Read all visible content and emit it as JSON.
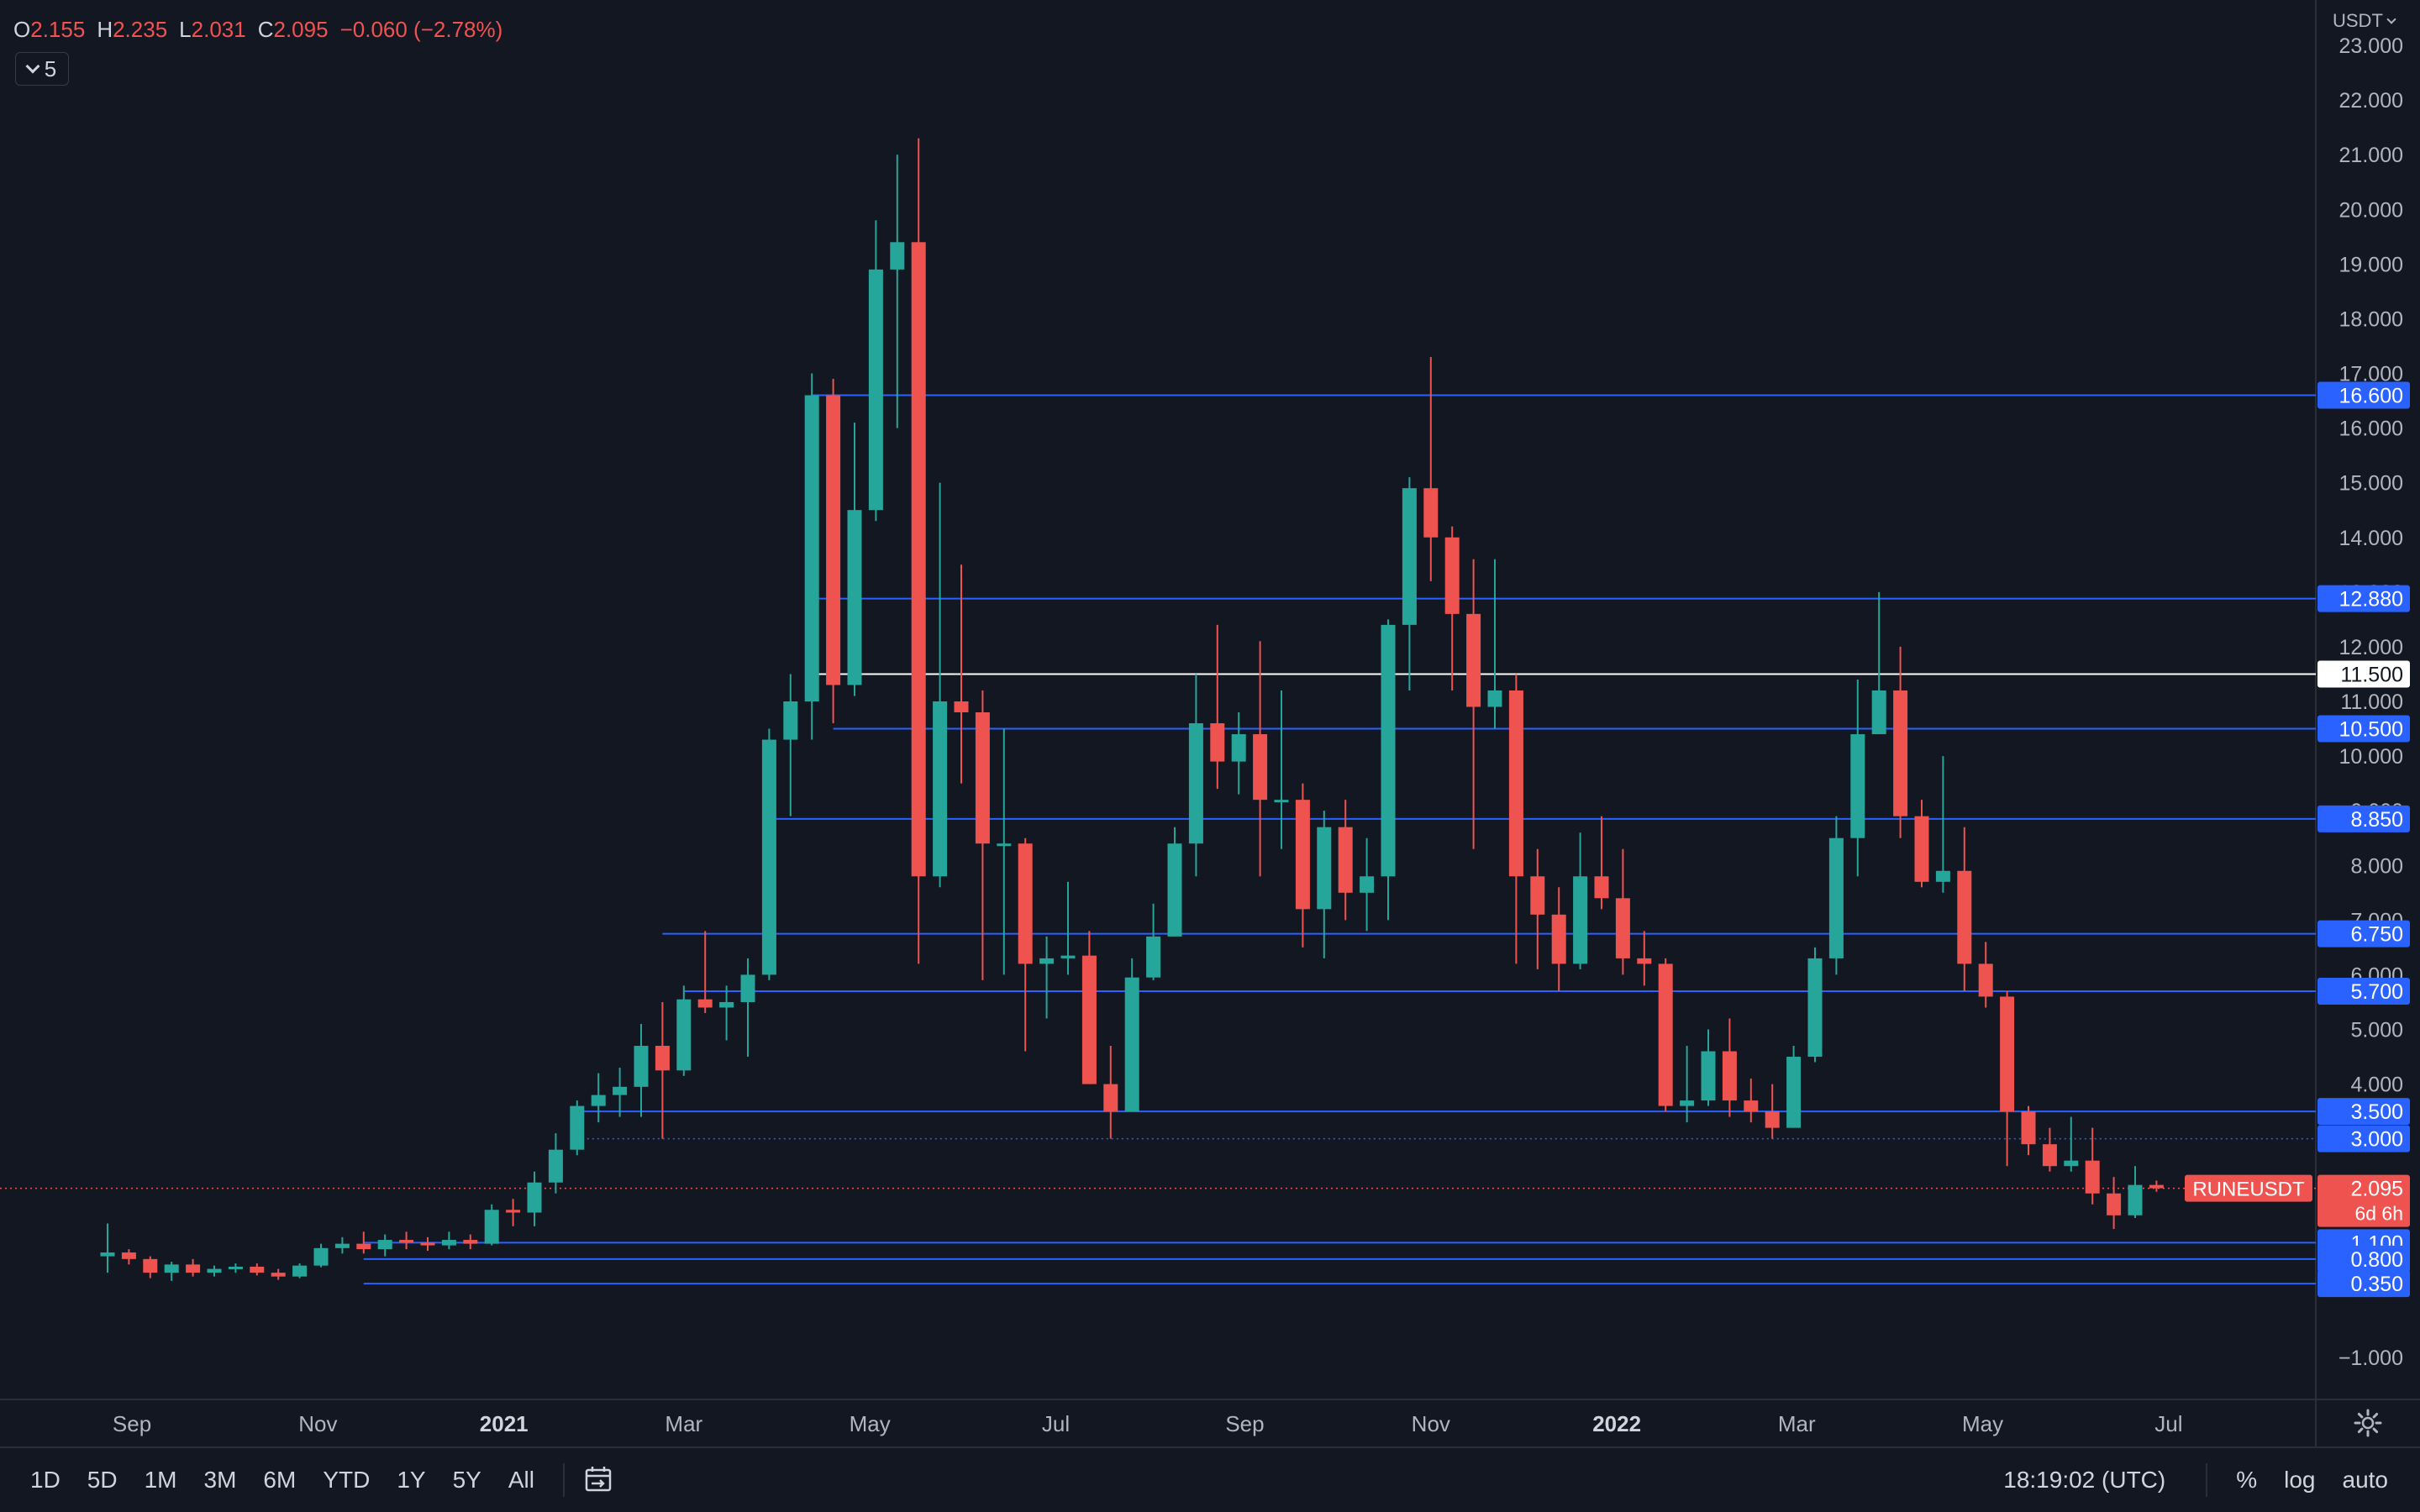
{
  "header": {
    "o_label": "O",
    "o_value": "2.155",
    "h_label": "H",
    "h_value": "2.235",
    "l_label": "L",
    "l_value": "2.031",
    "c_label": "C",
    "c_value": "2.095",
    "change": "−0.060 (−2.78%)",
    "indicator_count": "5",
    "currency": "USDT"
  },
  "colors": {
    "background": "#131722",
    "up": "#26a69a",
    "down": "#ef5350",
    "hline": "#2962ff",
    "white_line": "#ffffff",
    "axis_text": "#b2b5be"
  },
  "chart_data": {
    "type": "candlestick",
    "symbol": "RUNEUSDT",
    "interval": "1W",
    "current_price": "2.095",
    "countdown": "6d 6h",
    "ylim": [
      -1.4,
      23.2
    ],
    "y_ticks": [
      "23.000",
      "22.000",
      "21.000",
      "20.000",
      "19.000",
      "18.000",
      "17.000",
      "16.000",
      "15.000",
      "14.000",
      "13.000",
      "12.000",
      "11.000",
      "10.000",
      "9.000",
      "8.000",
      "7.000",
      "6.000",
      "5.000",
      "4.000",
      "3.000",
      "2.000",
      "1.000",
      "−1.000"
    ],
    "x_ticks": [
      {
        "label": "Sep",
        "date": "2020-09-01",
        "bold": false
      },
      {
        "label": "Nov",
        "date": "2020-11-01",
        "bold": false
      },
      {
        "label": "2021",
        "date": "2021-01-01",
        "bold": true
      },
      {
        "label": "Mar",
        "date": "2021-03-01",
        "bold": false
      },
      {
        "label": "May",
        "date": "2021-05-01",
        "bold": false
      },
      {
        "label": "Jul",
        "date": "2021-07-01",
        "bold": false
      },
      {
        "label": "Sep",
        "date": "2021-09-01",
        "bold": false
      },
      {
        "label": "Nov",
        "date": "2021-11-01",
        "bold": false
      },
      {
        "label": "2022",
        "date": "2022-01-01",
        "bold": true
      },
      {
        "label": "Mar",
        "date": "2022-03-01",
        "bold": false
      },
      {
        "label": "May",
        "date": "2022-05-01",
        "bold": false
      },
      {
        "label": "Jul",
        "date": "2022-07-01",
        "bold": false
      }
    ],
    "horizontal_levels": [
      {
        "price": 16.6,
        "label": "16.600",
        "color": "#2962ff",
        "start_date": "2021-04-12"
      },
      {
        "price": 12.88,
        "label": "12.880",
        "color": "#2962ff",
        "start_date": "2021-04-12"
      },
      {
        "price": 11.5,
        "label": "11.500",
        "color": "#ffffff",
        "start_date": "2021-04-12"
      },
      {
        "price": 10.5,
        "label": "10.500",
        "color": "#2962ff",
        "start_date": "2021-04-19"
      },
      {
        "price": 8.85,
        "label": "8.850",
        "color": "#2962ff",
        "start_date": "2021-03-29"
      },
      {
        "price": 6.75,
        "label": "6.750",
        "color": "#2962ff",
        "start_date": "2021-02-22"
      },
      {
        "price": 5.7,
        "label": "5.700",
        "color": "#2962ff",
        "start_date": "2021-03-01"
      },
      {
        "price": 3.5,
        "label": "3.500",
        "color": "#2962ff",
        "start_date": "2021-01-25"
      },
      {
        "price": 3.0,
        "label": "3.000",
        "color": "#2962ff",
        "start_date": "2021-01-25",
        "dotted": true
      },
      {
        "price": 1.1,
        "label": "1.100",
        "color": "#2962ff",
        "start_date": "2020-11-16"
      },
      {
        "price": 0.8,
        "label": "0.800",
        "color": "#2962ff",
        "start_date": "2020-11-16"
      },
      {
        "price": 0.35,
        "label": "0.350",
        "color": "#2962ff",
        "start_date": "2020-11-16"
      }
    ],
    "candles": [
      {
        "date": "2020-08-24",
        "o": 0.85,
        "h": 1.45,
        "l": 0.55,
        "c": 0.92
      },
      {
        "date": "2020-08-31",
        "o": 0.92,
        "h": 0.98,
        "l": 0.7,
        "c": 0.8
      },
      {
        "date": "2020-09-07",
        "o": 0.8,
        "h": 0.85,
        "l": 0.45,
        "c": 0.55
      },
      {
        "date": "2020-09-14",
        "o": 0.55,
        "h": 0.75,
        "l": 0.4,
        "c": 0.7
      },
      {
        "date": "2020-09-21",
        "o": 0.7,
        "h": 0.8,
        "l": 0.48,
        "c": 0.55
      },
      {
        "date": "2020-09-28",
        "o": 0.55,
        "h": 0.68,
        "l": 0.48,
        "c": 0.62
      },
      {
        "date": "2020-10-05",
        "o": 0.62,
        "h": 0.72,
        "l": 0.55,
        "c": 0.66
      },
      {
        "date": "2020-10-12",
        "o": 0.66,
        "h": 0.72,
        "l": 0.5,
        "c": 0.55
      },
      {
        "date": "2020-10-19",
        "o": 0.55,
        "h": 0.62,
        "l": 0.42,
        "c": 0.48
      },
      {
        "date": "2020-10-26",
        "o": 0.48,
        "h": 0.72,
        "l": 0.45,
        "c": 0.68
      },
      {
        "date": "2020-11-02",
        "o": 0.68,
        "h": 1.08,
        "l": 0.65,
        "c": 1.0
      },
      {
        "date": "2020-11-09",
        "o": 1.0,
        "h": 1.2,
        "l": 0.9,
        "c": 1.08
      },
      {
        "date": "2020-11-16",
        "o": 1.08,
        "h": 1.3,
        "l": 0.9,
        "c": 0.98
      },
      {
        "date": "2020-11-23",
        "o": 0.98,
        "h": 1.25,
        "l": 0.85,
        "c": 1.15
      },
      {
        "date": "2020-11-30",
        "o": 1.15,
        "h": 1.3,
        "l": 0.98,
        "c": 1.1
      },
      {
        "date": "2020-12-07",
        "o": 1.1,
        "h": 1.2,
        "l": 0.95,
        "c": 1.05
      },
      {
        "date": "2020-12-14",
        "o": 1.05,
        "h": 1.3,
        "l": 0.98,
        "c": 1.15
      },
      {
        "date": "2020-12-21",
        "o": 1.15,
        "h": 1.25,
        "l": 0.98,
        "c": 1.08
      },
      {
        "date": "2020-12-28",
        "o": 1.08,
        "h": 1.8,
        "l": 1.05,
        "c": 1.7
      },
      {
        "date": "2021-01-04",
        "o": 1.7,
        "h": 1.9,
        "l": 1.4,
        "c": 1.65
      },
      {
        "date": "2021-01-11",
        "o": 1.65,
        "h": 2.4,
        "l": 1.4,
        "c": 2.2
      },
      {
        "date": "2021-01-18",
        "o": 2.2,
        "h": 3.1,
        "l": 2.0,
        "c": 2.8
      },
      {
        "date": "2021-01-25",
        "o": 2.8,
        "h": 3.7,
        "l": 2.7,
        "c": 3.6
      },
      {
        "date": "2021-02-01",
        "o": 3.6,
        "h": 4.2,
        "l": 3.3,
        "c": 3.8
      },
      {
        "date": "2021-02-08",
        "o": 3.8,
        "h": 4.3,
        "l": 3.4,
        "c": 3.95
      },
      {
        "date": "2021-02-15",
        "o": 3.95,
        "h": 5.1,
        "l": 3.4,
        "c": 4.7
      },
      {
        "date": "2021-02-22",
        "o": 4.7,
        "h": 5.5,
        "l": 3.0,
        "c": 4.25
      },
      {
        "date": "2021-03-01",
        "o": 4.25,
        "h": 5.8,
        "l": 4.15,
        "c": 5.55
      },
      {
        "date": "2021-03-08",
        "o": 5.55,
        "h": 6.8,
        "l": 5.3,
        "c": 5.4
      },
      {
        "date": "2021-03-15",
        "o": 5.4,
        "h": 5.8,
        "l": 4.8,
        "c": 5.5
      },
      {
        "date": "2021-03-22",
        "o": 5.5,
        "h": 6.3,
        "l": 4.5,
        "c": 6.0
      },
      {
        "date": "2021-03-29",
        "o": 6.0,
        "h": 10.5,
        "l": 5.9,
        "c": 10.3
      },
      {
        "date": "2021-04-05",
        "o": 10.3,
        "h": 11.5,
        "l": 8.9,
        "c": 11.0
      },
      {
        "date": "2021-04-12",
        "o": 11.0,
        "h": 17.0,
        "l": 10.3,
        "c": 16.6
      },
      {
        "date": "2021-04-19",
        "o": 16.6,
        "h": 16.9,
        "l": 10.6,
        "c": 11.3
      },
      {
        "date": "2021-04-26",
        "o": 11.3,
        "h": 16.1,
        "l": 11.1,
        "c": 14.5
      },
      {
        "date": "2021-05-03",
        "o": 14.5,
        "h": 19.8,
        "l": 14.3,
        "c": 18.9
      },
      {
        "date": "2021-05-10",
        "o": 18.9,
        "h": 21.0,
        "l": 16.0,
        "c": 19.4
      },
      {
        "date": "2021-05-17",
        "o": 19.4,
        "h": 21.3,
        "l": 6.2,
        "c": 7.8
      },
      {
        "date": "2021-05-24",
        "o": 7.8,
        "h": 15.0,
        "l": 7.6,
        "c": 11.0
      },
      {
        "date": "2021-05-31",
        "o": 11.0,
        "h": 13.5,
        "l": 9.5,
        "c": 10.8
      },
      {
        "date": "2021-06-07",
        "o": 10.8,
        "h": 11.2,
        "l": 5.9,
        "c": 8.4
      },
      {
        "date": "2021-06-14",
        "o": 8.4,
        "h": 10.5,
        "l": 6.0,
        "c": 8.4
      },
      {
        "date": "2021-06-21",
        "o": 8.4,
        "h": 8.5,
        "l": 4.6,
        "c": 6.2
      },
      {
        "date": "2021-06-28",
        "o": 6.2,
        "h": 6.7,
        "l": 5.2,
        "c": 6.3
      },
      {
        "date": "2021-07-05",
        "o": 6.3,
        "h": 7.7,
        "l": 6.0,
        "c": 6.35
      },
      {
        "date": "2021-07-12",
        "o": 6.35,
        "h": 6.8,
        "l": 4.0,
        "c": 4.0
      },
      {
        "date": "2021-07-19",
        "o": 4.0,
        "h": 4.7,
        "l": 3.0,
        "c": 3.5
      },
      {
        "date": "2021-07-26",
        "o": 3.5,
        "h": 6.3,
        "l": 3.5,
        "c": 5.95
      },
      {
        "date": "2021-08-02",
        "o": 5.95,
        "h": 7.3,
        "l": 5.9,
        "c": 6.7
      },
      {
        "date": "2021-08-09",
        "o": 6.7,
        "h": 8.7,
        "l": 6.7,
        "c": 8.4
      },
      {
        "date": "2021-08-16",
        "o": 8.4,
        "h": 11.5,
        "l": 7.8,
        "c": 10.6
      },
      {
        "date": "2021-08-23",
        "o": 10.6,
        "h": 12.4,
        "l": 9.4,
        "c": 9.9
      },
      {
        "date": "2021-08-30",
        "o": 9.9,
        "h": 10.8,
        "l": 9.3,
        "c": 10.4
      },
      {
        "date": "2021-09-06",
        "o": 10.4,
        "h": 12.1,
        "l": 7.8,
        "c": 9.2
      },
      {
        "date": "2021-09-13",
        "o": 9.2,
        "h": 11.2,
        "l": 8.3,
        "c": 9.2
      },
      {
        "date": "2021-09-20",
        "o": 9.2,
        "h": 9.5,
        "l": 6.5,
        "c": 7.2
      },
      {
        "date": "2021-09-27",
        "o": 7.2,
        "h": 9.0,
        "l": 6.3,
        "c": 8.7
      },
      {
        "date": "2021-10-04",
        "o": 8.7,
        "h": 9.2,
        "l": 7.0,
        "c": 7.5
      },
      {
        "date": "2021-10-11",
        "o": 7.5,
        "h": 8.5,
        "l": 6.8,
        "c": 7.8
      },
      {
        "date": "2021-10-18",
        "o": 7.8,
        "h": 12.5,
        "l": 7.0,
        "c": 12.4
      },
      {
        "date": "2021-10-25",
        "o": 12.4,
        "h": 15.1,
        "l": 11.2,
        "c": 14.9
      },
      {
        "date": "2021-11-01",
        "o": 14.9,
        "h": 17.3,
        "l": 13.2,
        "c": 14.0
      },
      {
        "date": "2021-11-08",
        "o": 14.0,
        "h": 14.2,
        "l": 11.2,
        "c": 12.6
      },
      {
        "date": "2021-11-15",
        "o": 12.6,
        "h": 13.6,
        "l": 8.3,
        "c": 10.9
      },
      {
        "date": "2021-11-22",
        "o": 10.9,
        "h": 13.6,
        "l": 10.5,
        "c": 11.2
      },
      {
        "date": "2021-11-29",
        "o": 11.2,
        "h": 11.5,
        "l": 6.2,
        "c": 7.8
      },
      {
        "date": "2021-12-06",
        "o": 7.8,
        "h": 8.3,
        "l": 6.1,
        "c": 7.1
      },
      {
        "date": "2021-12-13",
        "o": 7.1,
        "h": 7.6,
        "l": 5.7,
        "c": 6.2
      },
      {
        "date": "2021-12-20",
        "o": 6.2,
        "h": 8.6,
        "l": 6.1,
        "c": 7.8
      },
      {
        "date": "2021-12-27",
        "o": 7.8,
        "h": 8.9,
        "l": 7.2,
        "c": 7.4
      },
      {
        "date": "2022-01-03",
        "o": 7.4,
        "h": 8.3,
        "l": 6.0,
        "c": 6.3
      },
      {
        "date": "2022-01-10",
        "o": 6.3,
        "h": 6.8,
        "l": 5.8,
        "c": 6.2
      },
      {
        "date": "2022-01-17",
        "o": 6.2,
        "h": 6.3,
        "l": 3.5,
        "c": 3.6
      },
      {
        "date": "2022-01-24",
        "o": 3.6,
        "h": 4.7,
        "l": 3.3,
        "c": 3.7
      },
      {
        "date": "2022-01-31",
        "o": 3.7,
        "h": 5.0,
        "l": 3.6,
        "c": 4.6
      },
      {
        "date": "2022-02-07",
        "o": 4.6,
        "h": 5.2,
        "l": 3.4,
        "c": 3.7
      },
      {
        "date": "2022-02-14",
        "o": 3.7,
        "h": 4.1,
        "l": 3.3,
        "c": 3.5
      },
      {
        "date": "2022-02-21",
        "o": 3.5,
        "h": 4.0,
        "l": 3.0,
        "c": 3.2
      },
      {
        "date": "2022-02-28",
        "o": 3.2,
        "h": 4.7,
        "l": 3.2,
        "c": 4.5
      },
      {
        "date": "2022-03-07",
        "o": 4.5,
        "h": 6.5,
        "l": 4.4,
        "c": 6.3
      },
      {
        "date": "2022-03-14",
        "o": 6.3,
        "h": 8.9,
        "l": 6.0,
        "c": 8.5
      },
      {
        "date": "2022-03-21",
        "o": 8.5,
        "h": 11.4,
        "l": 7.8,
        "c": 10.4
      },
      {
        "date": "2022-03-28",
        "o": 10.4,
        "h": 13.0,
        "l": 10.4,
        "c": 11.2
      },
      {
        "date": "2022-04-04",
        "o": 11.2,
        "h": 12.0,
        "l": 8.5,
        "c": 8.9
      },
      {
        "date": "2022-04-11",
        "o": 8.9,
        "h": 9.2,
        "l": 7.6,
        "c": 7.7
      },
      {
        "date": "2022-04-18",
        "o": 7.7,
        "h": 10.0,
        "l": 7.5,
        "c": 7.9
      },
      {
        "date": "2022-04-25",
        "o": 7.9,
        "h": 8.7,
        "l": 5.7,
        "c": 6.2
      },
      {
        "date": "2022-05-02",
        "o": 6.2,
        "h": 6.6,
        "l": 5.4,
        "c": 5.6
      },
      {
        "date": "2022-05-09",
        "o": 5.6,
        "h": 5.7,
        "l": 2.5,
        "c": 3.5
      },
      {
        "date": "2022-05-16",
        "o": 3.5,
        "h": 3.6,
        "l": 2.7,
        "c": 2.9
      },
      {
        "date": "2022-05-23",
        "o": 2.9,
        "h": 3.2,
        "l": 2.4,
        "c": 2.5
      },
      {
        "date": "2022-05-30",
        "o": 2.5,
        "h": 3.4,
        "l": 2.4,
        "c": 2.6
      },
      {
        "date": "2022-06-06",
        "o": 2.6,
        "h": 3.2,
        "l": 1.8,
        "c": 2.0
      },
      {
        "date": "2022-06-13",
        "o": 2.0,
        "h": 2.3,
        "l": 1.35,
        "c": 1.6
      },
      {
        "date": "2022-06-20",
        "o": 1.6,
        "h": 2.5,
        "l": 1.55,
        "c": 2.155
      },
      {
        "date": "2022-06-27",
        "o": 2.155,
        "h": 2.235,
        "l": 2.031,
        "c": 2.095
      }
    ]
  },
  "bottom_bar": {
    "ranges": [
      "1D",
      "5D",
      "1M",
      "3M",
      "6M",
      "YTD",
      "1Y",
      "5Y",
      "All"
    ],
    "time": "18:19:02 (UTC)",
    "percent_label": "%",
    "log_label": "log",
    "auto_label": "auto"
  }
}
